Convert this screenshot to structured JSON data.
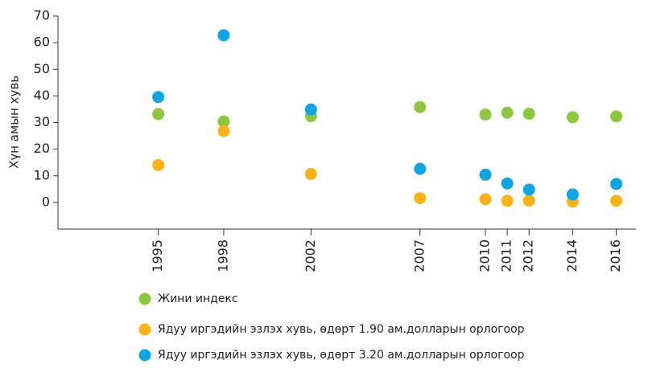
{
  "chart_data": {
    "type": "scatter",
    "y_label": "Хүн амын хувь",
    "x": [
      1995,
      1998,
      2002,
      2007,
      2010,
      2011,
      2012,
      2014,
      2016
    ],
    "series": [
      {
        "name": "Жини индекс",
        "color": "#8dc63f",
        "values": [
          33.2,
          30.4,
          32.4,
          35.8,
          33,
          33.7,
          33.3,
          32,
          32.3
        ]
      },
      {
        "name": "Ядуу иргэдийн эзлэх хувь, өдөрт 1.90 ам.долларын орлогоор",
        "color": "#fbb216",
        "values": [
          14,
          26.8,
          10.7,
          1.6,
          1.2,
          0.6,
          0.7,
          0.3,
          0.6
        ]
      },
      {
        "name": "Ядуу иргэдийн эзлэх хувь, өдөрт 3.20 ам.долларын орлогоор",
        "color": "#0ea5e0",
        "values": [
          39.6,
          62.8,
          34.9,
          12.6,
          10.4,
          7.1,
          4.8,
          3.0,
          6.9
        ]
      }
    ],
    "xlim": [
      1990.4,
      2016.9
    ],
    "xticks": [
      1995,
      1998,
      2002,
      2007,
      2010,
      2011,
      2012,
      2014,
      2016
    ],
    "ylim": [
      -10,
      70
    ],
    "yticks": [
      0,
      10,
      20,
      30,
      40,
      50,
      60,
      70
    ]
  }
}
